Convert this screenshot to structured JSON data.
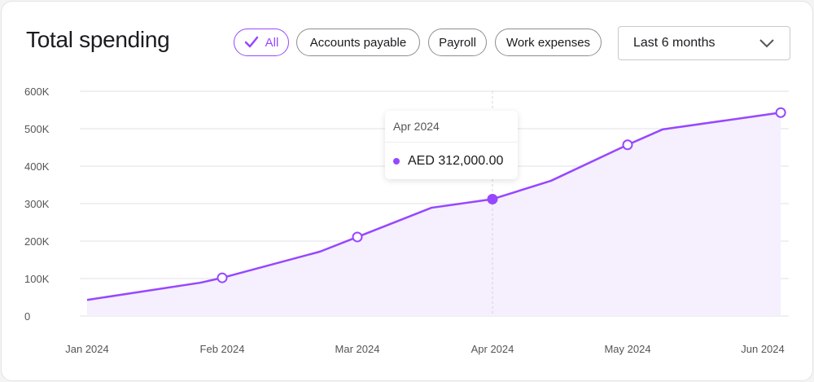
{
  "header": {
    "title": "Total spending",
    "filters": [
      {
        "label": "All",
        "active": true,
        "icon": "check-icon"
      },
      {
        "label": "Accounts payable",
        "active": false
      },
      {
        "label": "Payroll",
        "active": false
      },
      {
        "label": "Work expenses",
        "active": false
      }
    ],
    "period_select": {
      "value": "Last 6 months",
      "icon": "chevron-down-icon"
    }
  },
  "tooltip": {
    "date": "Apr 2024",
    "value": "AED 312,000.00"
  },
  "colors": {
    "accent": "#9747ff",
    "area_fill": "#f5effe",
    "grid": "#ececef"
  },
  "chart_data": {
    "type": "area",
    "x_tick_labels": [
      "Jan 2024",
      "Feb 2024",
      "Mar 2024",
      "Apr 2024",
      "May 2024",
      "Jun 2024"
    ],
    "y_tick_labels": [
      "0",
      "100K",
      "200K",
      "300K",
      "400K",
      "500K",
      "600K"
    ],
    "ylim": [
      0,
      600000
    ],
    "grid": true,
    "series": [
      {
        "points": [
          {
            "x": "2024-01-01",
            "y": 43000,
            "marker": false
          },
          {
            "x": "2024-01-27",
            "y": 89000,
            "marker": false
          },
          {
            "x": "2024-02-01",
            "y": 102000,
            "marker": true
          },
          {
            "x": "2024-02-22",
            "y": 172000,
            "marker": false
          },
          {
            "x": "2024-03-01",
            "y": 211000,
            "marker": true
          },
          {
            "x": "2024-03-18",
            "y": 289000,
            "marker": false
          },
          {
            "x": "2024-04-01",
            "y": 312000,
            "marker": true,
            "active": true
          },
          {
            "x": "2024-04-14",
            "y": 361000,
            "marker": false
          },
          {
            "x": "2024-05-01",
            "y": 457000,
            "marker": true
          },
          {
            "x": "2024-05-09",
            "y": 498000,
            "marker": false
          },
          {
            "x": "2024-06-05",
            "y": 543000,
            "marker": true
          }
        ]
      }
    ]
  }
}
